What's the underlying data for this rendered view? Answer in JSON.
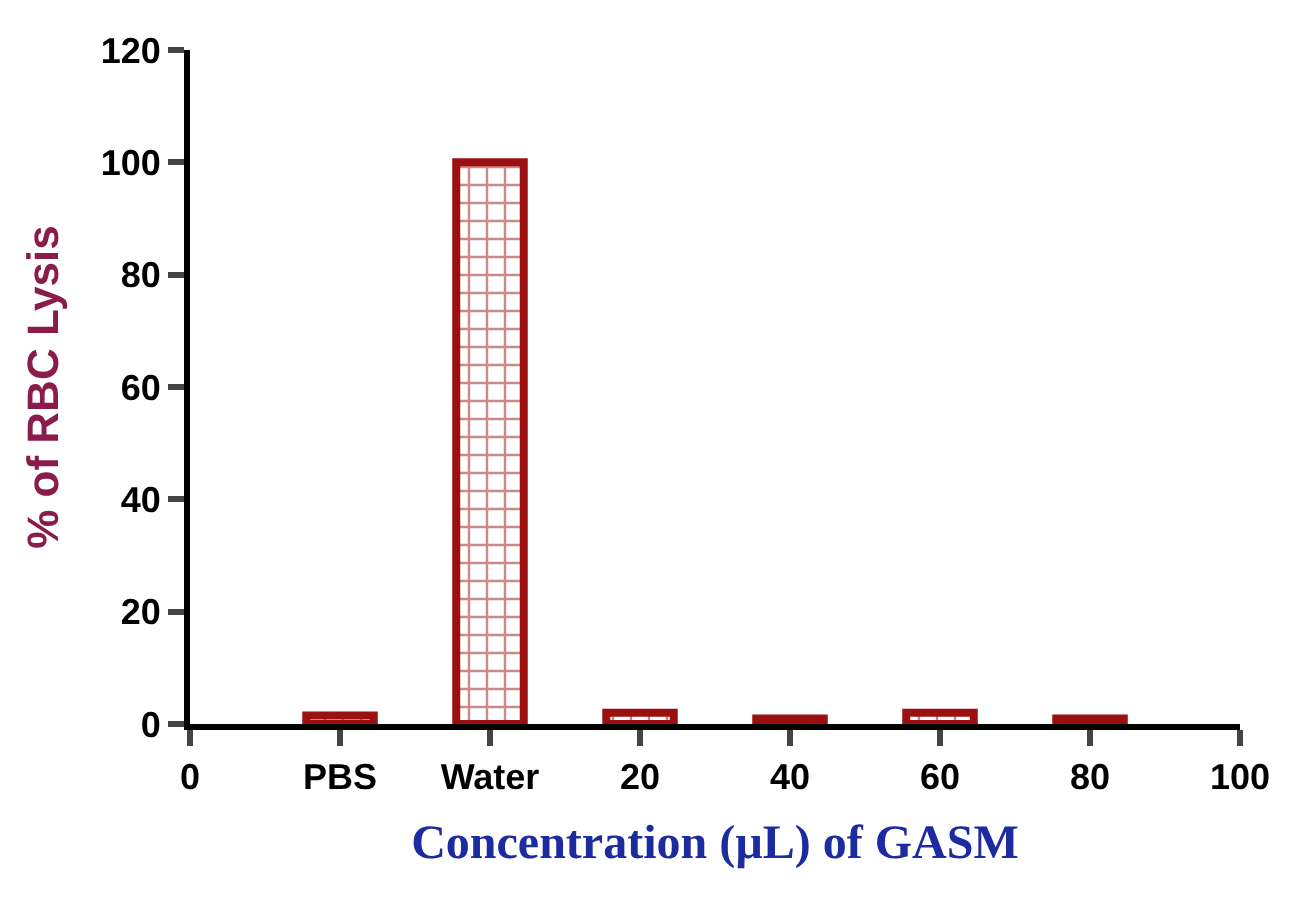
{
  "chart_data": {
    "type": "bar",
    "xlabel": "Concentration (µL) of GASM",
    "ylabel": "% of RBC Lysis",
    "categories": [
      "0",
      "PBS",
      "Water",
      "20",
      "40",
      "60",
      "80",
      "100"
    ],
    "values": [
      null,
      1.5,
      100,
      2,
      1,
      2,
      1,
      null
    ],
    "color": "#9b1111",
    "ylim": [
      0,
      120
    ],
    "yticks": [
      0,
      20,
      40,
      60,
      80,
      100,
      120
    ]
  }
}
